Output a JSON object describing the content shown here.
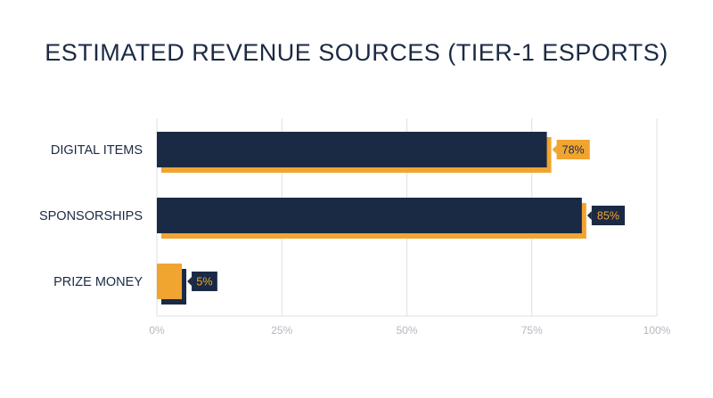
{
  "chart_data": {
    "type": "bar",
    "orientation": "horizontal",
    "title": "ESTIMATED REVENUE SOURCES (TIER-1 ESPORTS)",
    "categories": [
      "DIGITAL ITEMS",
      "SPONSORSHIPS",
      "PRIZE MONEY"
    ],
    "values": [
      78,
      85,
      5
    ],
    "value_labels": [
      "78%",
      "85%",
      "5%"
    ],
    "xlim": [
      0,
      100
    ],
    "x_ticks": [
      0,
      25,
      50,
      75,
      100
    ],
    "x_tick_labels": [
      "0%",
      "25%",
      "50%",
      "75%",
      "100%"
    ],
    "xlabel": "",
    "ylabel": "",
    "grid": true,
    "legend": "none"
  },
  "colors": {
    "title": "#1b2a44",
    "navy": "#1b2a44",
    "orange": "#f0a531",
    "grid": "#dcdfe3",
    "tick": "#b4b8c0"
  }
}
